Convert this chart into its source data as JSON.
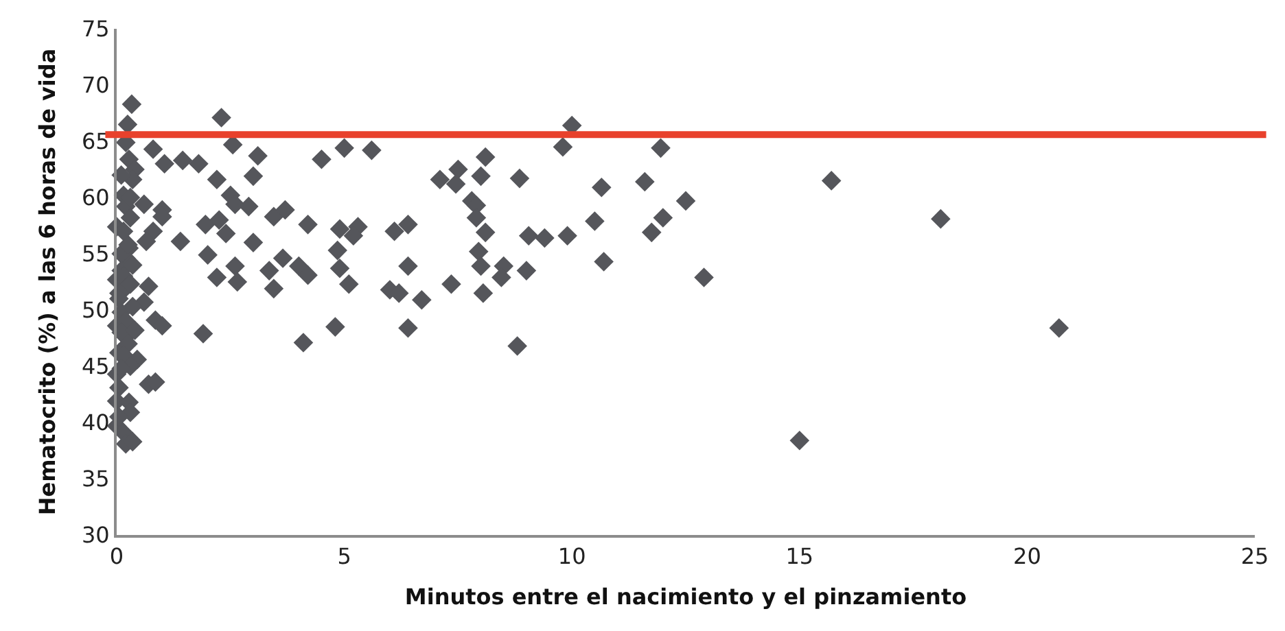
{
  "chart_data": {
    "type": "scatter",
    "xlabel": "Minutos entre el nacimiento y el pinzamiento",
    "ylabel": "Hematocrito (%) a las 6 horas de vida",
    "xlim": [
      0,
      25
    ],
    "xticks": [
      0,
      5,
      10,
      15,
      20,
      25
    ],
    "ylim": [
      30,
      75
    ],
    "yticks": [
      30,
      35,
      40,
      45,
      50,
      55,
      60,
      65,
      70,
      75
    ],
    "marker": "diamond",
    "ref_lines": [
      {
        "axis": "y",
        "value": 65.6,
        "color": "#e8412c"
      }
    ],
    "series": [
      {
        "color": "#55565b",
        "x": [
          0.33,
          2.3,
          0.24,
          0.2,
          0.8,
          1.05,
          1.45,
          1.8,
          2.55,
          3.1,
          0.27,
          0.4,
          0.35,
          2.2,
          3.0,
          4.5,
          0.15,
          0.2,
          0.6,
          1.0,
          1.0,
          0.3,
          2.5,
          2.6,
          2.9,
          0,
          1.95,
          2.25,
          2.4,
          3.45,
          3.7,
          4.2,
          0.8,
          0.65,
          1.4,
          3.0,
          0.27,
          0.2,
          0.1,
          2.0,
          2.6,
          2.65,
          2.2,
          3.45,
          3.35,
          3.65,
          4.0,
          4.2,
          0,
          0.05,
          0.7,
          0.6,
          0.1,
          0,
          0.85,
          1.0,
          1.9,
          4.1,
          4.8,
          0.2,
          0.05,
          0.45,
          0,
          0.7,
          0.85,
          0.05,
          0,
          0.27,
          0.3,
          0,
          0.15,
          0.2,
          0.1,
          0.15,
          0.2,
          0.05,
          0.2,
          0.1,
          0.25,
          0.15,
          0.3,
          0.1,
          0.3,
          0.35,
          0.4,
          0.25,
          0.35,
          0.15,
          0.3,
          0.1,
          0.35,
          0.05,
          5.0,
          5.6,
          8.1,
          7.1,
          7.5,
          7.45,
          8.0,
          8.85,
          7.8,
          7.9,
          7.9,
          8.1,
          9.05,
          9.4,
          9.9,
          10.5,
          10.65,
          11.6,
          12.5,
          12.0,
          11.75,
          10.7,
          12.9,
          9.8,
          10.0,
          11.95,
          4.9,
          5.3,
          5.2,
          6.1,
          6.4,
          4.85,
          4.9,
          5.1,
          6.0,
          6.2,
          6.4,
          6.7,
          7.35,
          7.95,
          8.0,
          8.05,
          8.5,
          8.45,
          9.0,
          6.4,
          8.8,
          15.7,
          18.1,
          20.7,
          15.0
        ],
        "values": [
          68.3,
          67.1,
          66.5,
          64.9,
          64.3,
          63.0,
          63.3,
          63.0,
          64.7,
          63.7,
          63.4,
          62.5,
          61.6,
          61.6,
          61.9,
          63.4,
          60.2,
          59.2,
          59.4,
          58.9,
          58.3,
          58.2,
          60.2,
          59.4,
          59.2,
          57.4,
          57.6,
          58.0,
          56.8,
          58.3,
          58.9,
          57.6,
          57.0,
          56.1,
          56.1,
          56.0,
          55.5,
          54.6,
          53.5,
          54.9,
          53.9,
          52.5,
          52.9,
          51.9,
          53.5,
          54.6,
          53.9,
          53.1,
          52.7,
          51.5,
          52.1,
          50.7,
          49.8,
          48.6,
          49.1,
          48.6,
          47.9,
          47.1,
          48.5,
          47.6,
          46.2,
          45.6,
          44.3,
          43.4,
          43.6,
          43.1,
          41.9,
          41.8,
          40.9,
          39.7,
          39.1,
          38.1,
          55.0,
          53.0,
          52.0,
          51.0,
          49.0,
          48.0,
          47.0,
          46.0,
          45.0,
          44.8,
          52.3,
          50.3,
          48.2,
          55.8,
          54.0,
          57.0,
          60.0,
          62.0,
          38.3,
          40.5,
          64.4,
          64.2,
          63.6,
          61.6,
          62.5,
          61.2,
          61.9,
          61.7,
          59.7,
          59.3,
          58.2,
          56.9,
          56.6,
          56.4,
          56.6,
          57.9,
          60.9,
          61.4,
          59.7,
          58.2,
          56.9,
          54.3,
          52.9,
          64.5,
          66.4,
          64.4,
          57.2,
          57.4,
          56.6,
          57.0,
          57.6,
          55.3,
          53.7,
          52.3,
          51.8,
          51.5,
          53.9,
          50.9,
          52.3,
          55.2,
          53.9,
          51.5,
          53.9,
          52.9,
          53.5,
          48.4,
          46.8,
          61.5,
          58.1,
          48.4,
          38.4
        ]
      }
    ]
  }
}
